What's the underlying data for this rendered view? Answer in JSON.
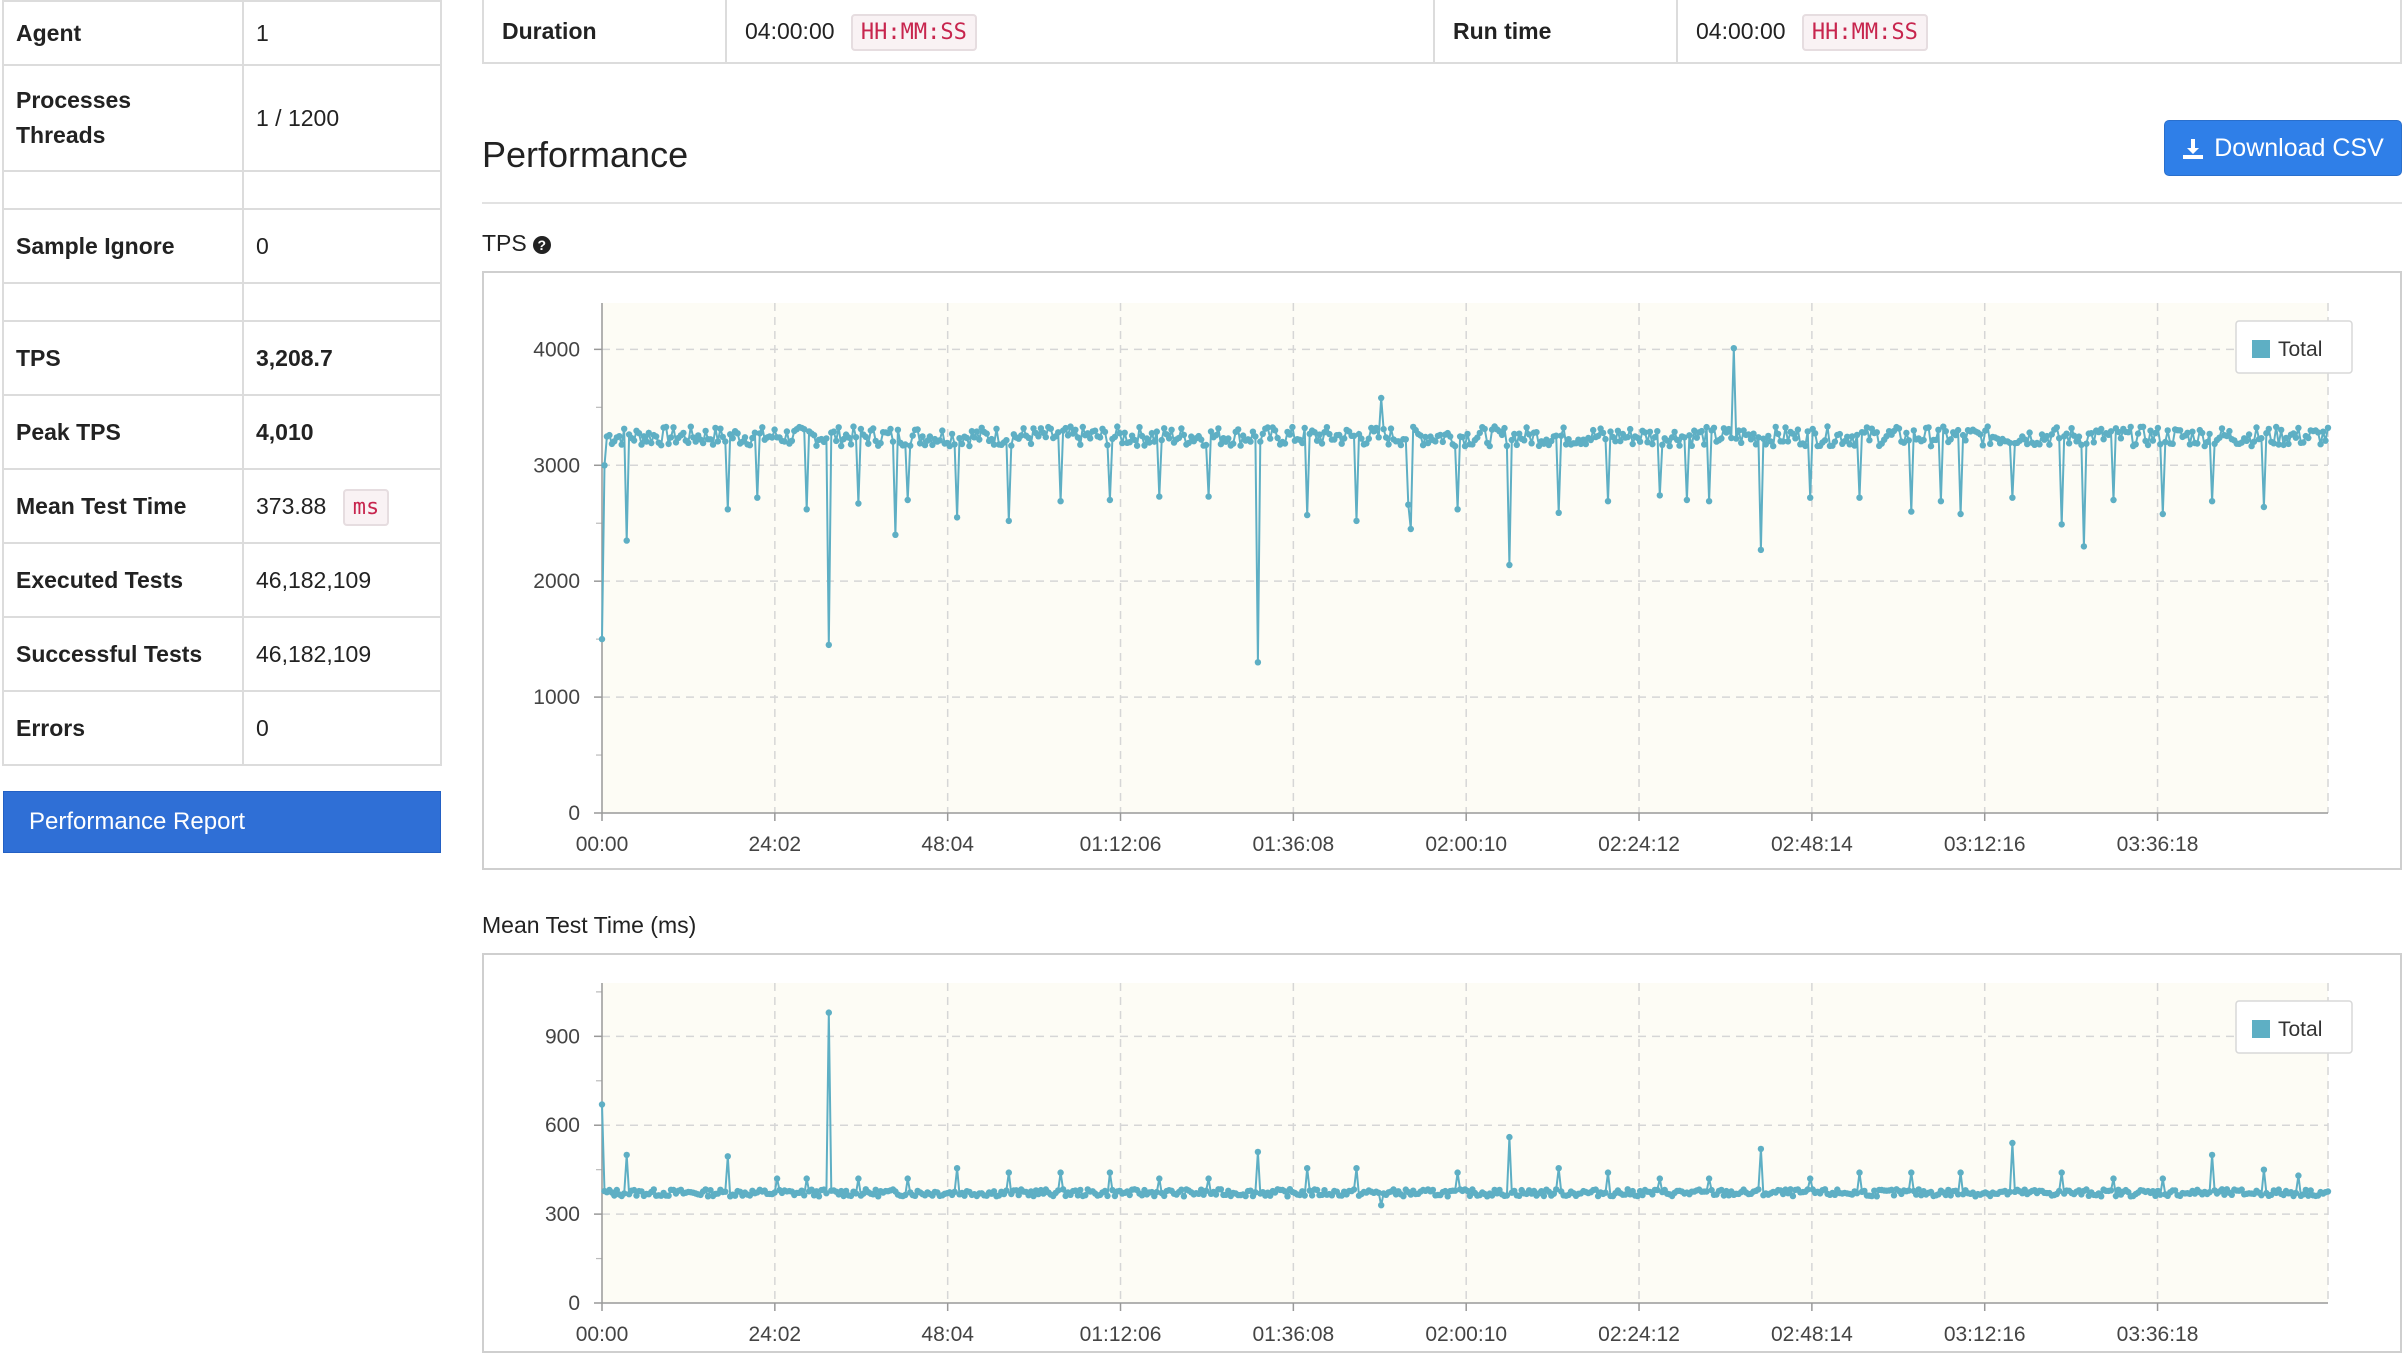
{
  "summary": {
    "agent_label": "Agent",
    "agent_value": "1",
    "proc_label_1": "Processes",
    "proc_label_2": "Threads",
    "proc_value": "1 / 1200",
    "sample_ignore_label": "Sample Ignore",
    "sample_ignore_value": "0",
    "tps_label": "TPS",
    "tps_value": "3,208.7",
    "peak_tps_label": "Peak TPS",
    "peak_tps_value": "4,010",
    "mean_test_time_label": "Mean Test Time",
    "mean_test_time_value": "373.88",
    "mean_test_time_unit": "ms",
    "executed_label": "Executed Tests",
    "executed_value": "46,182,109",
    "successful_label": "Successful Tests",
    "successful_value": "46,182,109",
    "errors_label": "Errors",
    "errors_value": "0",
    "report_button": "Performance Report"
  },
  "info": {
    "duration_label": "Duration",
    "duration_value": "04:00:00",
    "duration_format": "HH:MM:SS",
    "runtime_label": "Run time",
    "runtime_value": "04:00:00",
    "runtime_format": "HH:MM:SS"
  },
  "performance": {
    "title": "Performance",
    "download_button": "Download CSV"
  },
  "colors": {
    "series": "#5eafc4",
    "button_blue": "#2f7fe8",
    "report_blue": "#2f6fd6",
    "plot_bg": "#fdfcf5"
  },
  "chart_data": [
    {
      "type": "line",
      "title": "TPS",
      "xlabel": "",
      "ylabel": "",
      "x_ticks": [
        "00:00",
        "24:02",
        "48:04",
        "01:12:06",
        "01:36:08",
        "02:00:10",
        "02:24:12",
        "02:48:14",
        "03:12:16",
        "03:36:18"
      ],
      "y_ticks": [
        0,
        1000,
        2000,
        3000,
        4000
      ],
      "ylim": [
        0,
        4400
      ],
      "x_range_min": [
        0,
        240
      ],
      "legend": "top-right",
      "grid": true,
      "series": [
        {
          "name": "Total",
          "baseline": 3250,
          "start_point": {
            "x_min": 0,
            "y": 1500
          },
          "dips": [
            {
              "x": 0.4,
              "y": 3000
            },
            {
              "x": 3.5,
              "y": 2350
            },
            {
              "x": 17.6,
              "y": 2620
            },
            {
              "x": 21.7,
              "y": 2720
            },
            {
              "x": 28.6,
              "y": 2620
            },
            {
              "x": 31.6,
              "y": 1450
            },
            {
              "x": 35.5,
              "y": 2670
            },
            {
              "x": 40.8,
              "y": 2400
            },
            {
              "x": 42.6,
              "y": 2700
            },
            {
              "x": 49.5,
              "y": 2550
            },
            {
              "x": 56.5,
              "y": 2520
            },
            {
              "x": 63.6,
              "y": 2690
            },
            {
              "x": 70.7,
              "y": 2700
            },
            {
              "x": 77.5,
              "y": 2730
            },
            {
              "x": 84.5,
              "y": 2730
            },
            {
              "x": 91.3,
              "y": 1300
            },
            {
              "x": 98.0,
              "y": 2570
            },
            {
              "x": 105.0,
              "y": 2520
            },
            {
              "x": 112.0,
              "y": 2660
            },
            {
              "x": 112.4,
              "y": 2450
            },
            {
              "x": 119.0,
              "y": 2620
            },
            {
              "x": 126.0,
              "y": 2140
            },
            {
              "x": 133.0,
              "y": 2590
            },
            {
              "x": 140.0,
              "y": 2690
            },
            {
              "x": 147.0,
              "y": 2740
            },
            {
              "x": 151.0,
              "y": 2700
            },
            {
              "x": 154.0,
              "y": 2690
            },
            {
              "x": 161.0,
              "y": 2270
            },
            {
              "x": 168.0,
              "y": 2720
            },
            {
              "x": 175.0,
              "y": 2720
            },
            {
              "x": 182.0,
              "y": 2600
            },
            {
              "x": 186.0,
              "y": 2690
            },
            {
              "x": 189.0,
              "y": 2580
            },
            {
              "x": 196.0,
              "y": 2720
            },
            {
              "x": 203.0,
              "y": 2490
            },
            {
              "x": 206.0,
              "y": 2300
            },
            {
              "x": 210.0,
              "y": 2700
            },
            {
              "x": 217.0,
              "y": 2580
            },
            {
              "x": 224.0,
              "y": 2690
            },
            {
              "x": 231.0,
              "y": 2640
            }
          ],
          "peaks": [
            {
              "x": 108.2,
              "y": 3580
            },
            {
              "x": 157.4,
              "y": 4010
            }
          ]
        }
      ]
    },
    {
      "type": "line",
      "title": "Mean Test Time (ms)",
      "xlabel": "",
      "ylabel": "",
      "x_ticks": [
        "00:00",
        "24:02",
        "48:04",
        "01:12:06",
        "01:36:08",
        "02:00:10",
        "02:24:12",
        "02:48:14",
        "03:12:16",
        "03:36:18"
      ],
      "y_ticks": [
        0,
        300,
        600,
        900
      ],
      "ylim": [
        0,
        1080
      ],
      "x_range_min": [
        0,
        240
      ],
      "legend": "top-right",
      "grid": true,
      "series": [
        {
          "name": "Total",
          "baseline": 372,
          "start_point": {
            "x_min": 0,
            "y": 670
          },
          "spikes": [
            {
              "x": 3.5,
              "y": 500
            },
            {
              "x": 17.6,
              "y": 495
            },
            {
              "x": 24.4,
              "y": 420
            },
            {
              "x": 28.6,
              "y": 420
            },
            {
              "x": 31.6,
              "y": 980
            },
            {
              "x": 35.5,
              "y": 420
            },
            {
              "x": 42.6,
              "y": 420
            },
            {
              "x": 49.5,
              "y": 455
            },
            {
              "x": 56.5,
              "y": 440
            },
            {
              "x": 63.6,
              "y": 440
            },
            {
              "x": 70.7,
              "y": 440
            },
            {
              "x": 77.5,
              "y": 420
            },
            {
              "x": 84.5,
              "y": 420
            },
            {
              "x": 91.3,
              "y": 510
            },
            {
              "x": 98.0,
              "y": 455
            },
            {
              "x": 105.0,
              "y": 455
            },
            {
              "x": 119.0,
              "y": 440
            },
            {
              "x": 126.0,
              "y": 560
            },
            {
              "x": 133.0,
              "y": 455
            },
            {
              "x": 140.0,
              "y": 440
            },
            {
              "x": 147.0,
              "y": 420
            },
            {
              "x": 154.0,
              "y": 420
            },
            {
              "x": 161.0,
              "y": 520
            },
            {
              "x": 168.0,
              "y": 420
            },
            {
              "x": 175.0,
              "y": 440
            },
            {
              "x": 182.0,
              "y": 440
            },
            {
              "x": 189.0,
              "y": 440
            },
            {
              "x": 196.0,
              "y": 540
            },
            {
              "x": 203.0,
              "y": 440
            },
            {
              "x": 210.0,
              "y": 420
            },
            {
              "x": 217.0,
              "y": 420
            },
            {
              "x": 224.0,
              "y": 500
            },
            {
              "x": 231.0,
              "y": 450
            },
            {
              "x": 236.0,
              "y": 430
            }
          ],
          "dips": [
            {
              "x": 108.2,
              "y": 330
            }
          ]
        }
      ]
    }
  ]
}
